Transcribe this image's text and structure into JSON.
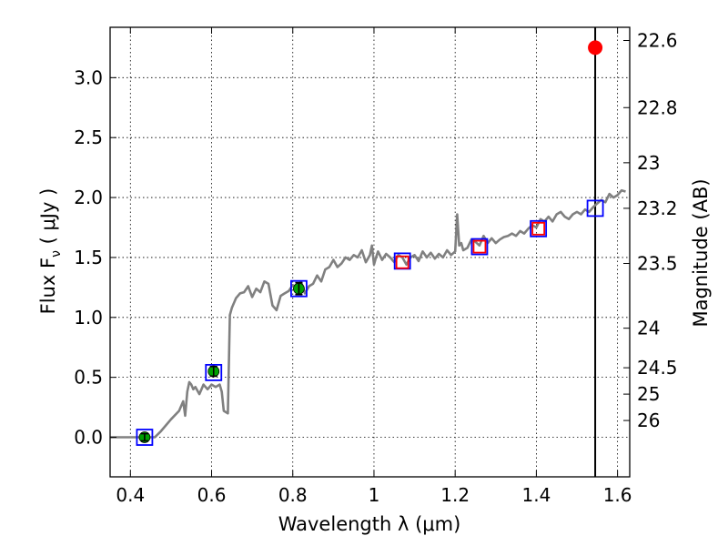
{
  "chart_data": {
    "type": "line",
    "xlabel": "Wavelength  λ (μm)",
    "ylabel_left": "Flux  F",
    "ylabel_left_sub": "ν",
    "ylabel_left_unit": "  ( μJy )",
    "ylabel_right": "Magnitude (AB)",
    "xlim": [
      0.35,
      1.63
    ],
    "ylim": [
      -0.33,
      3.42
    ],
    "grid": true,
    "x_ticks": [
      0.4,
      0.6,
      0.8,
      1.0,
      1.2,
      1.4,
      1.6
    ],
    "x_tick_labels": [
      "0.4",
      "0.6",
      "0.8",
      "1",
      "1.2",
      "1.4",
      "1.6"
    ],
    "y_ticks": [
      0.0,
      0.5,
      1.0,
      1.5,
      2.0,
      2.5,
      3.0
    ],
    "y_tick_labels": [
      "0.0",
      "0.5",
      "1.0",
      "1.5",
      "2.0",
      "2.5",
      "3.0"
    ],
    "right_ticks": [
      {
        "label": "22.6",
        "flux": 3.31
      },
      {
        "label": "22.8",
        "flux": 2.75
      },
      {
        "label": "23",
        "flux": 2.29
      },
      {
        "label": "23.2",
        "flux": 1.91
      },
      {
        "label": "23.5",
        "flux": 1.45
      },
      {
        "label": "24",
        "flux": 0.91
      },
      {
        "label": "24.5",
        "flux": 0.58
      },
      {
        "label": "25",
        "flux": 0.36
      },
      {
        "label": "26",
        "flux": 0.14
      }
    ],
    "vertical_line_x": 1.545,
    "series": [
      {
        "kind": "model-spectrum",
        "color": "#808080",
        "x": [
          0.35,
          0.46,
          0.475,
          0.5,
          0.52,
          0.53,
          0.535,
          0.54,
          0.545,
          0.55,
          0.555,
          0.56,
          0.57,
          0.575,
          0.58,
          0.59,
          0.6,
          0.61,
          0.62,
          0.625,
          0.63,
          0.64,
          0.645,
          0.65,
          0.66,
          0.67,
          0.68,
          0.69,
          0.7,
          0.71,
          0.72,
          0.73,
          0.74,
          0.75,
          0.76,
          0.77,
          0.78,
          0.79,
          0.8,
          0.81,
          0.82,
          0.83,
          0.84,
          0.85,
          0.86,
          0.87,
          0.88,
          0.89,
          0.9,
          0.91,
          0.92,
          0.93,
          0.94,
          0.95,
          0.96,
          0.97,
          0.98,
          0.99,
          0.995,
          1.0,
          1.005,
          1.01,
          1.02,
          1.03,
          1.04,
          1.05,
          1.06,
          1.07,
          1.08,
          1.09,
          1.1,
          1.11,
          1.12,
          1.13,
          1.14,
          1.15,
          1.16,
          1.17,
          1.18,
          1.19,
          1.2,
          1.205,
          1.21,
          1.215,
          1.22,
          1.23,
          1.24,
          1.25,
          1.26,
          1.27,
          1.28,
          1.29,
          1.3,
          1.31,
          1.32,
          1.33,
          1.34,
          1.35,
          1.36,
          1.37,
          1.38,
          1.39,
          1.4,
          1.41,
          1.42,
          1.43,
          1.44,
          1.45,
          1.46,
          1.47,
          1.48,
          1.49,
          1.5,
          1.51,
          1.52,
          1.53,
          1.54,
          1.55,
          1.56,
          1.57,
          1.58,
          1.59,
          1.6,
          1.61,
          1.62
        ],
        "y": [
          0.0,
          0.0,
          0.05,
          0.15,
          0.22,
          0.3,
          0.18,
          0.38,
          0.46,
          0.44,
          0.4,
          0.42,
          0.36,
          0.4,
          0.44,
          0.4,
          0.44,
          0.42,
          0.44,
          0.38,
          0.22,
          0.2,
          1.02,
          1.08,
          1.16,
          1.2,
          1.21,
          1.26,
          1.17,
          1.24,
          1.21,
          1.3,
          1.28,
          1.1,
          1.06,
          1.18,
          1.2,
          1.22,
          1.27,
          1.25,
          1.3,
          1.2,
          1.26,
          1.28,
          1.35,
          1.3,
          1.4,
          1.42,
          1.48,
          1.42,
          1.45,
          1.5,
          1.48,
          1.52,
          1.5,
          1.56,
          1.46,
          1.52,
          1.6,
          1.44,
          1.5,
          1.55,
          1.48,
          1.53,
          1.5,
          1.46,
          1.52,
          1.5,
          1.44,
          1.5,
          1.52,
          1.47,
          1.55,
          1.5,
          1.54,
          1.49,
          1.53,
          1.5,
          1.56,
          1.52,
          1.55,
          1.86,
          1.6,
          1.62,
          1.56,
          1.58,
          1.65,
          1.63,
          1.6,
          1.68,
          1.62,
          1.66,
          1.62,
          1.65,
          1.67,
          1.68,
          1.7,
          1.68,
          1.72,
          1.7,
          1.74,
          1.77,
          1.75,
          1.82,
          1.8,
          1.84,
          1.8,
          1.86,
          1.88,
          1.84,
          1.82,
          1.86,
          1.88,
          1.86,
          1.9,
          1.88,
          1.92,
          1.95,
          1.98,
          1.96,
          2.03,
          2.0,
          2.02,
          2.06,
          2.05
        ]
      },
      {
        "kind": "model-photometry",
        "marker": "open-square",
        "color": "#0000ff",
        "x": [
          0.435,
          0.605,
          0.815,
          1.07,
          1.26,
          1.405,
          1.545
        ],
        "y": [
          0.0,
          0.54,
          1.24,
          1.47,
          1.59,
          1.74,
          1.91
        ]
      },
      {
        "kind": "detections",
        "marker": "filled-circle",
        "color": "#00a000",
        "x": [
          0.435,
          0.605,
          0.815
        ],
        "y": [
          0.0,
          0.55,
          1.24
        ],
        "yerr": [
          0.03,
          0.04,
          0.05
        ]
      },
      {
        "kind": "other-photometry",
        "marker": "open-square",
        "color": "#ff0000",
        "x": [
          1.07,
          1.26,
          1.405
        ],
        "y": [
          1.46,
          1.59,
          1.74
        ]
      },
      {
        "kind": "highlighted-point",
        "marker": "filled-circle",
        "color": "#ff0000",
        "x": [
          1.545
        ],
        "y": [
          3.25
        ]
      }
    ]
  }
}
